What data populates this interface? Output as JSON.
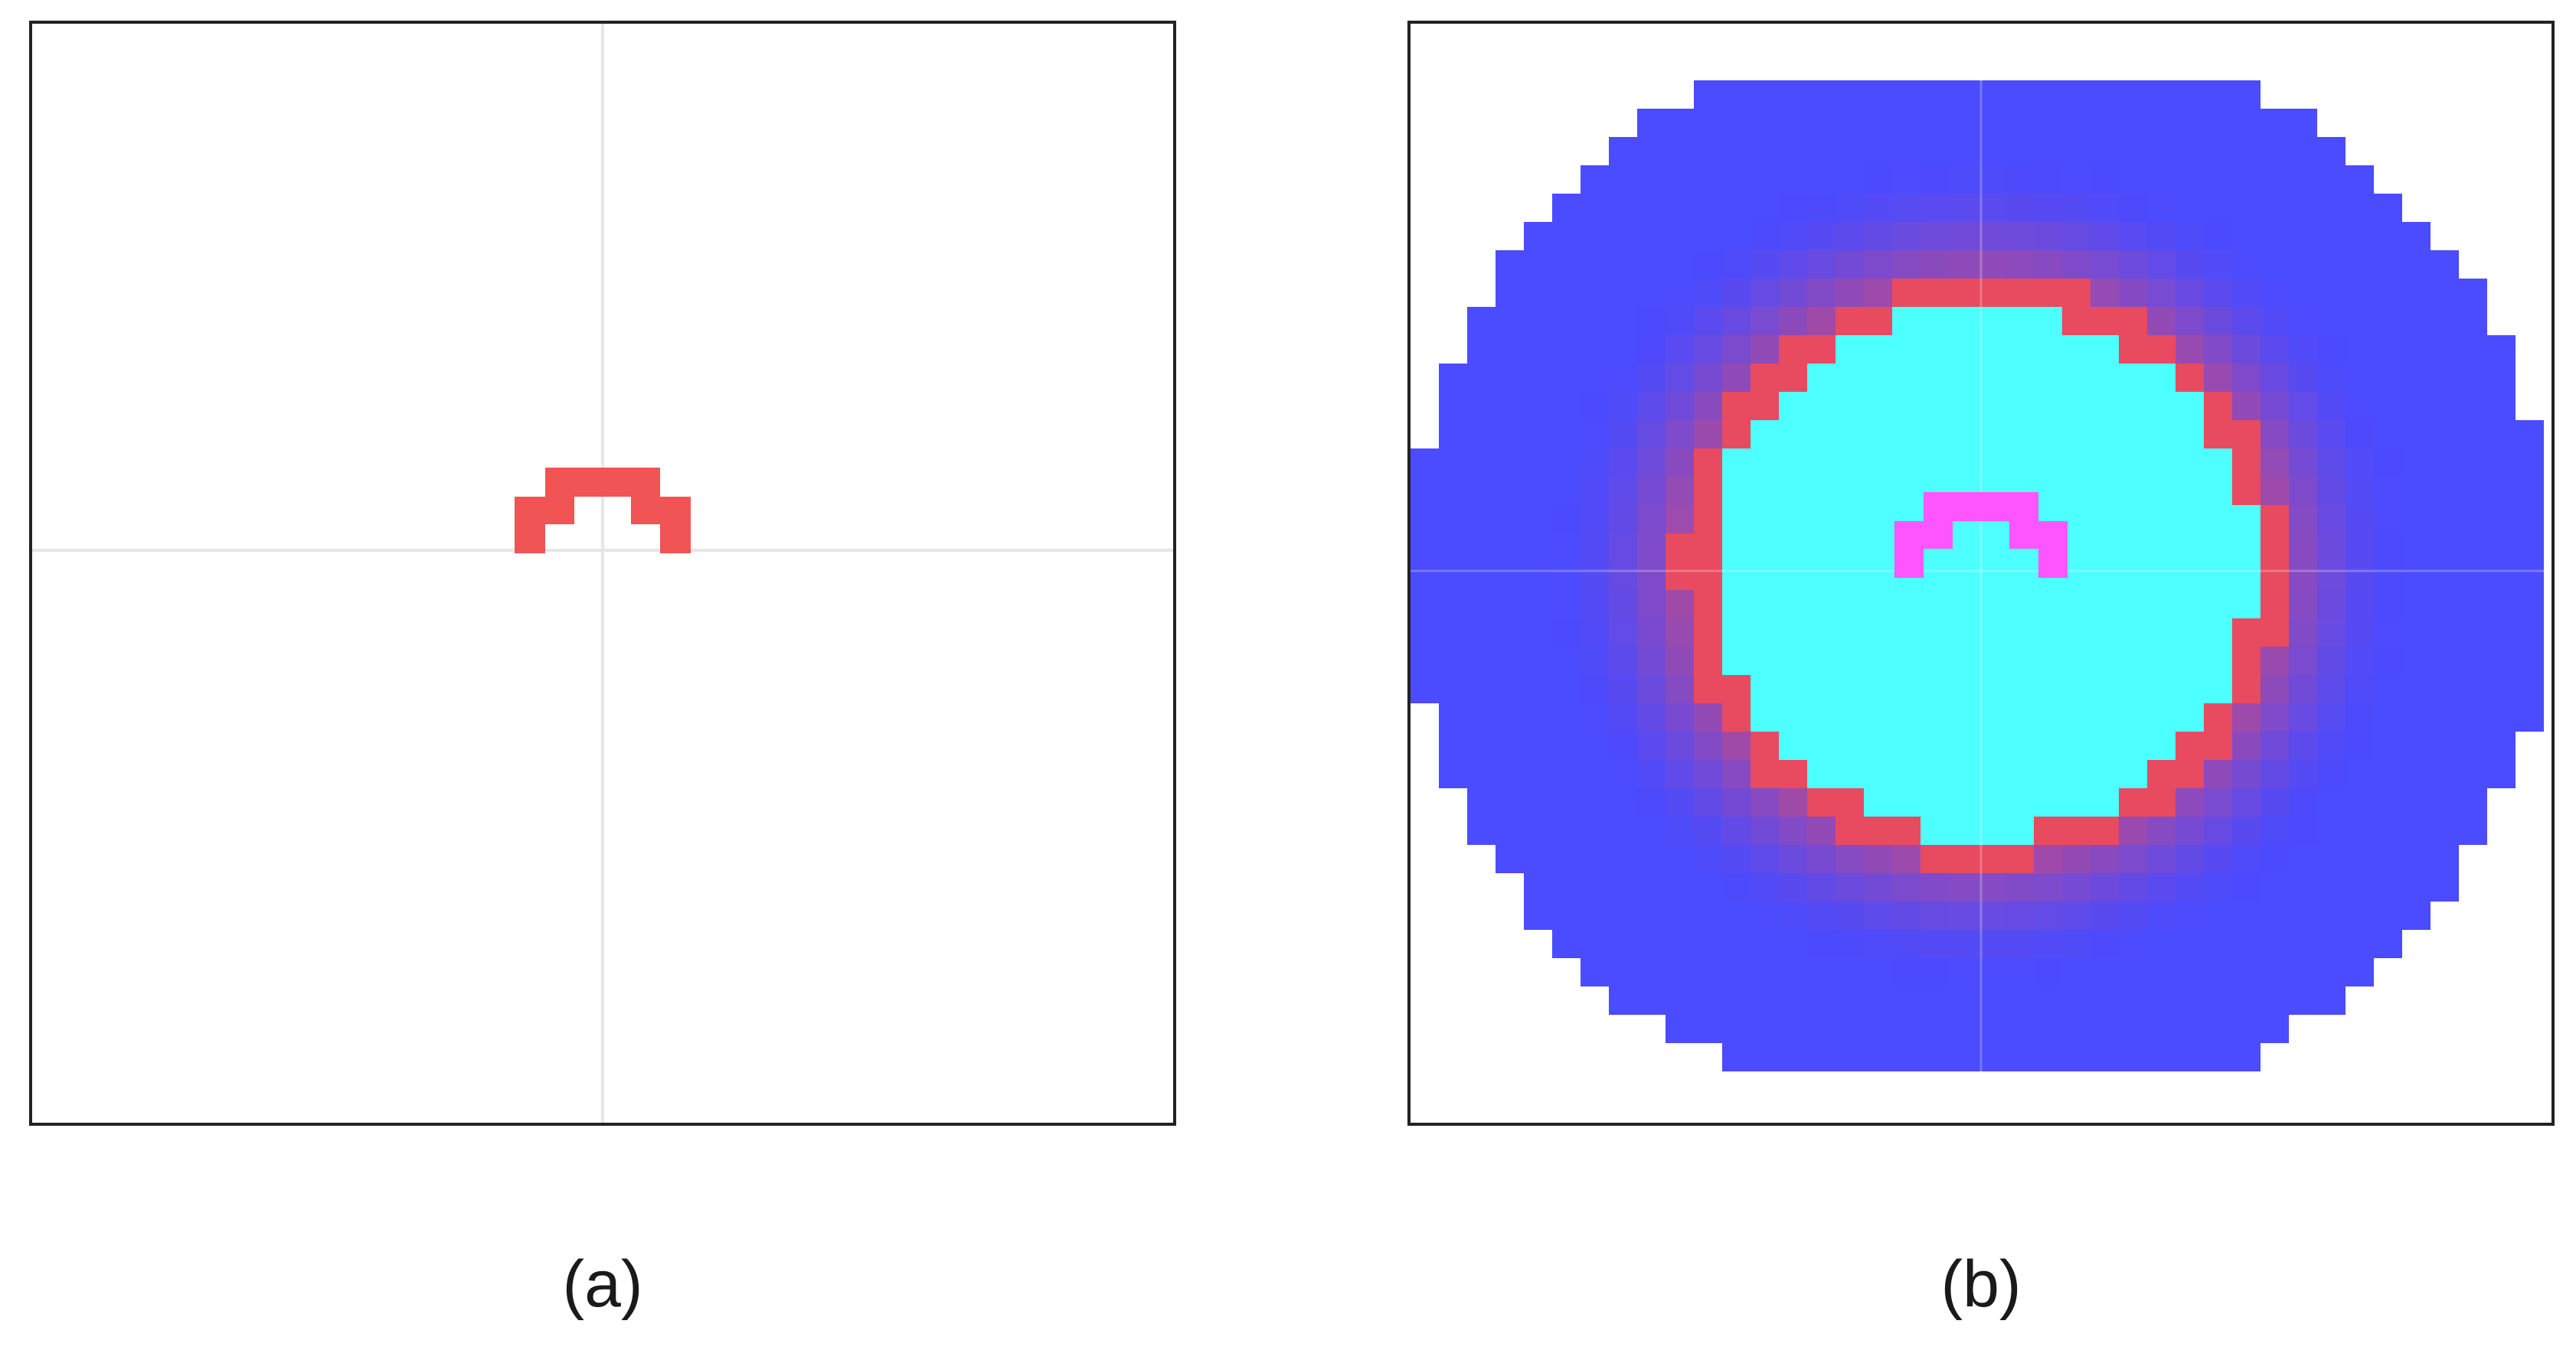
{
  "panels": [
    {
      "id": "a",
      "caption": "(a)"
    },
    {
      "id": "b",
      "caption": "(b)"
    }
  ],
  "colors": {
    "crosshair": "#e6e6e6",
    "marker": "#f05454",
    "marker_overlap": "#ff55ff",
    "ring": "#e84a5f",
    "inner_region": "#4dffff",
    "outer_disk": "#4b4bff",
    "frame": "#222222"
  }
}
